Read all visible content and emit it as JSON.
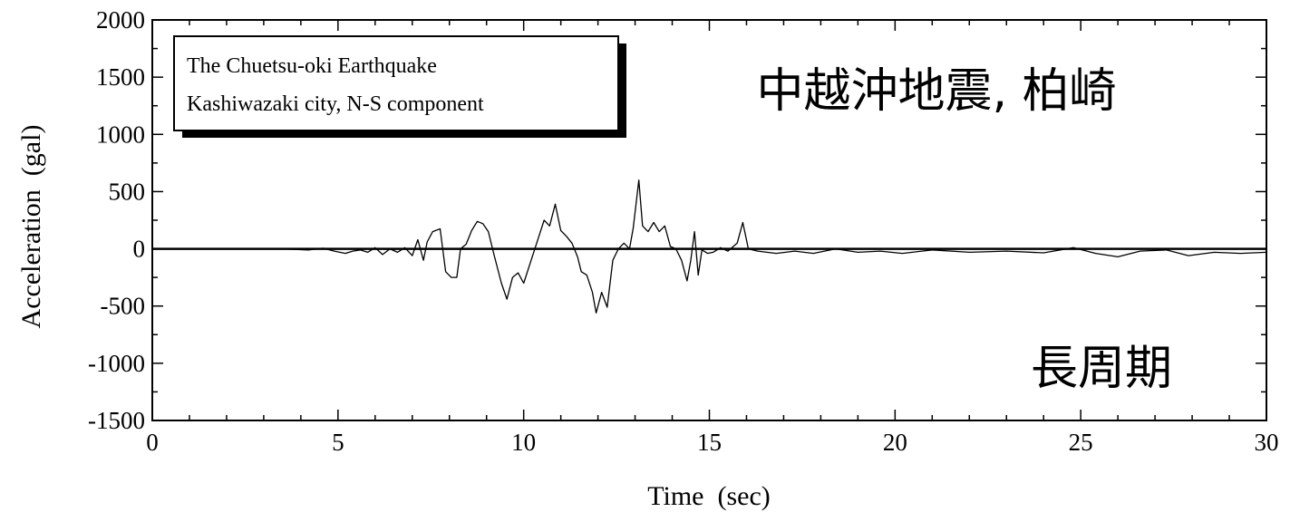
{
  "chart_data": {
    "type": "line",
    "xlabel": "Time  (sec)",
    "ylabel": "Acceleration  (gal)",
    "xlim": [
      0,
      30
    ],
    "ylim": [
      -1500,
      2000
    ],
    "x_ticks": [
      "0",
      "5",
      "10",
      "15",
      "20",
      "25",
      "30"
    ],
    "y_ticks": [
      "2000",
      "1500",
      "1000",
      "500",
      "0",
      "-500",
      "-1000",
      "-1500"
    ],
    "grid": false,
    "legend_box": {
      "line1": "The Chuetsu-oki Earthquake",
      "line2": "Kashiwazaki city, N-S component"
    },
    "annotations": {
      "title_jp": "中越沖地震, 柏崎",
      "long_period_jp": "長周期"
    },
    "baseline": {
      "y": 0,
      "color": "#000000"
    },
    "series": [
      {
        "color": "#000000",
        "points": [
          [
            0,
            0
          ],
          [
            3.5,
            0
          ],
          [
            4.2,
            -10
          ],
          [
            4.6,
            5
          ],
          [
            4.9,
            -20
          ],
          [
            5.2,
            -40
          ],
          [
            5.4,
            -20
          ],
          [
            5.6,
            -10
          ],
          [
            5.8,
            -30
          ],
          [
            6.0,
            10
          ],
          [
            6.2,
            -50
          ],
          [
            6.4,
            0
          ],
          [
            6.6,
            -30
          ],
          [
            6.8,
            10
          ],
          [
            7.0,
            -60
          ],
          [
            7.15,
            80
          ],
          [
            7.3,
            -100
          ],
          [
            7.4,
            60
          ],
          [
            7.55,
            150
          ],
          [
            7.75,
            175
          ],
          [
            7.9,
            -200
          ],
          [
            8.05,
            -250
          ],
          [
            8.2,
            -250
          ],
          [
            8.3,
            0
          ],
          [
            8.45,
            40
          ],
          [
            8.6,
            160
          ],
          [
            8.75,
            240
          ],
          [
            8.9,
            220
          ],
          [
            9.05,
            150
          ],
          [
            9.2,
            -50
          ],
          [
            9.4,
            -300
          ],
          [
            9.55,
            -440
          ],
          [
            9.7,
            -250
          ],
          [
            9.85,
            -210
          ],
          [
            10.0,
            -300
          ],
          [
            10.2,
            -100
          ],
          [
            10.4,
            100
          ],
          [
            10.55,
            250
          ],
          [
            10.7,
            200
          ],
          [
            10.85,
            390
          ],
          [
            11.0,
            160
          ],
          [
            11.15,
            110
          ],
          [
            11.3,
            50
          ],
          [
            11.45,
            -70
          ],
          [
            11.55,
            -200
          ],
          [
            11.7,
            -230
          ],
          [
            11.85,
            -380
          ],
          [
            11.95,
            -560
          ],
          [
            12.1,
            -380
          ],
          [
            12.25,
            -510
          ],
          [
            12.4,
            -100
          ],
          [
            12.55,
            0
          ],
          [
            12.7,
            50
          ],
          [
            12.85,
            0
          ],
          [
            12.95,
            180
          ],
          [
            13.1,
            600
          ],
          [
            13.2,
            200
          ],
          [
            13.35,
            150
          ],
          [
            13.5,
            230
          ],
          [
            13.65,
            150
          ],
          [
            13.8,
            200
          ],
          [
            13.95,
            20
          ],
          [
            14.1,
            0
          ],
          [
            14.25,
            -100
          ],
          [
            14.4,
            -280
          ],
          [
            14.5,
            -100
          ],
          [
            14.6,
            150
          ],
          [
            14.7,
            -230
          ],
          [
            14.8,
            -10
          ],
          [
            14.95,
            -40
          ],
          [
            15.1,
            -30
          ],
          [
            15.3,
            10
          ],
          [
            15.5,
            -20
          ],
          [
            15.75,
            50
          ],
          [
            15.9,
            230
          ],
          [
            16.05,
            0
          ],
          [
            16.3,
            -20
          ],
          [
            16.8,
            -40
          ],
          [
            17.3,
            -20
          ],
          [
            17.8,
            -40
          ],
          [
            18.4,
            0
          ],
          [
            19.0,
            -30
          ],
          [
            19.6,
            -20
          ],
          [
            20.2,
            -40
          ],
          [
            21.0,
            -10
          ],
          [
            22.0,
            -30
          ],
          [
            23.0,
            -20
          ],
          [
            24.0,
            -35
          ],
          [
            24.8,
            10
          ],
          [
            25.4,
            -40
          ],
          [
            26.0,
            -70
          ],
          [
            26.6,
            -20
          ],
          [
            27.3,
            -10
          ],
          [
            27.9,
            -60
          ],
          [
            28.6,
            -30
          ],
          [
            29.3,
            -40
          ],
          [
            30.0,
            -30
          ]
        ]
      }
    ]
  }
}
